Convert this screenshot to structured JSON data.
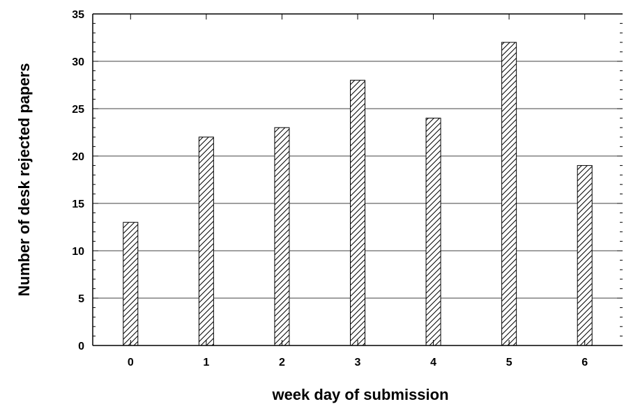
{
  "chart_data": {
    "type": "bar",
    "title": "",
    "xlabel": "week day of submission",
    "ylabel": "Number of desk rejected papers",
    "categories": [
      "0",
      "1",
      "2",
      "3",
      "4",
      "5",
      "6"
    ],
    "values": [
      13,
      22,
      23,
      28,
      24,
      32,
      19
    ],
    "ylim": [
      0,
      35
    ],
    "y_ticks": [
      0,
      5,
      10,
      15,
      20,
      25,
      30,
      35
    ],
    "grid": "horizontal",
    "bar_fill": "diagonal-hatch",
    "colors": {
      "bar_stroke": "#000000",
      "hatch": "#000000",
      "grid": "#000000",
      "axis": "#000000",
      "background": "#ffffff"
    }
  }
}
